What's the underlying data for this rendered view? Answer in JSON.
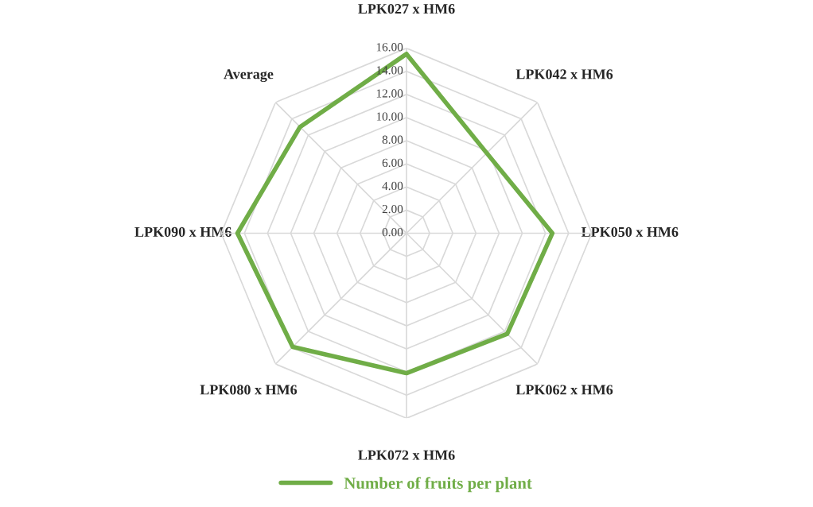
{
  "chart_data": {
    "type": "radar",
    "categories": [
      "LPK027 x HM6",
      "LPK042 x HM6",
      "LPK050 x HM6",
      "LPK062 x HM6",
      "LPK072 x HM6",
      "LPK080 x HM6",
      "LPK090 x HM6",
      "Average"
    ],
    "series": [
      {
        "name": "Number of fruits per plant",
        "color": "#70ad47",
        "values": [
          15.5,
          9.8,
          12.6,
          12.3,
          12.1,
          13.9,
          14.6,
          13.0
        ]
      }
    ],
    "ylim": [
      0,
      16
    ],
    "yticks": [
      {
        "value": 0,
        "label": "0.00"
      },
      {
        "value": 2,
        "label": "2.00"
      },
      {
        "value": 4,
        "label": "4.00"
      },
      {
        "value": 6,
        "label": "6.00"
      },
      {
        "value": 8,
        "label": "8.00"
      },
      {
        "value": 10,
        "label": "10.00"
      },
      {
        "value": 12,
        "label": "12.00"
      },
      {
        "value": 14,
        "label": "14.00"
      },
      {
        "value": 16,
        "label": "16.00"
      }
    ],
    "grid": true,
    "legend": "bottom",
    "marker": "none",
    "line_style": "solid"
  }
}
